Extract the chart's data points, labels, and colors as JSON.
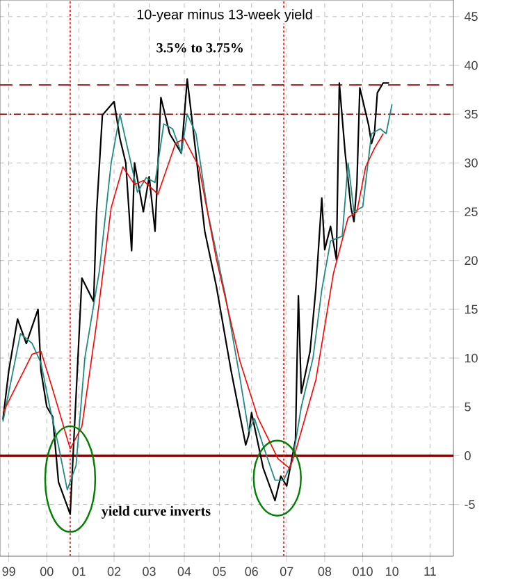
{
  "chart_data": {
    "type": "line",
    "title": "10-year minus 13-week yield",
    "annotations": [
      "3.5% to 3.75%",
      "yield curve inverts"
    ],
    "xlim": [
      "1999-01",
      "2011-12"
    ],
    "ylim": [
      -10.3,
      46.7
    ],
    "xticks": [
      {
        "value": "1999-04",
        "label": "99"
      },
      {
        "value": "2000-05",
        "label": "00"
      },
      {
        "value": "2001-04",
        "label": "01"
      },
      {
        "value": "2002-04",
        "label": "02"
      },
      {
        "value": "2003-04",
        "label": "03"
      },
      {
        "value": "2004-04",
        "label": "04"
      },
      {
        "value": "2005-04",
        "label": "05"
      },
      {
        "value": "2006-03",
        "label": "06"
      },
      {
        "value": "2007-03",
        "label": "07"
      },
      {
        "value": "2008-04",
        "label": "08"
      },
      {
        "value": "2009-05",
        "label": "010"
      },
      {
        "value": "2010-03",
        "label": "10"
      },
      {
        "value": "2011-04",
        "label": "11"
      }
    ],
    "yticks": [
      -5,
      0,
      5,
      10,
      15,
      20,
      25,
      30,
      35,
      40,
      45
    ],
    "grid": true,
    "series": [
      {
        "color": "#000000",
        "x": [
          "1999-02",
          "1999-04",
          "1999-07",
          "1999-10",
          "2000-02",
          "2000-03",
          "2000-05",
          "2000-07",
          "2000-09",
          "2001-01",
          "2001-02",
          "2001-05",
          "2001-09",
          "2001-10",
          "2001-12",
          "2002-04",
          "2002-06",
          "2002-08",
          "2002-10",
          "2002-11",
          "2003-02",
          "2003-04",
          "2003-06",
          "2003-08",
          "2003-11",
          "2004-03",
          "2004-05",
          "2004-07",
          "2004-11",
          "2005-03",
          "2005-08",
          "2006-01",
          "2006-02",
          "2006-03",
          "2006-07",
          "2006-11",
          "2007-01",
          "2007-03",
          "2007-06",
          "2007-07",
          "2007-08",
          "2007-11",
          "2008-01",
          "2008-03",
          "2008-04",
          "2008-06",
          "2008-08",
          "2008-09",
          "2008-11",
          "2009-01",
          "2009-02",
          "2009-03",
          "2009-04",
          "2009-07",
          "2009-08",
          "2009-09",
          "2009-10",
          "2009-12",
          "2010-02"
        ],
        "values": [
          3.7,
          8.7,
          14,
          11.5,
          15,
          8.7,
          5,
          4,
          -2.7,
          -6,
          0.1,
          18.2,
          15.8,
          24.9,
          34.9,
          36.3,
          32.5,
          30,
          21,
          30,
          25,
          28.6,
          23,
          36.7,
          33,
          31,
          38.6,
          33.5,
          23,
          17.3,
          8.7,
          1.1,
          2.1,
          4.4,
          -1.3,
          -4.6,
          -2.1,
          -3.1,
          1.6,
          16.4,
          6.4,
          10.7,
          17.2,
          26.4,
          21.1,
          23.5,
          20.1,
          38.2,
          31,
          25.4,
          24,
          27.8,
          37.7,
          33.9,
          32,
          33,
          37.2,
          38.2,
          38.2
        ]
      },
      {
        "color": "#1f8a80",
        "x": [
          "1999-02",
          "1999-05",
          "1999-08",
          "1999-12",
          "2000-03",
          "2000-06",
          "2000-09",
          "2000-12",
          "2001-03",
          "2001-06",
          "2001-11",
          "2002-03",
          "2002-06",
          "2002-09",
          "2002-12",
          "2003-03",
          "2003-06",
          "2003-09",
          "2003-12",
          "2004-03",
          "2004-05",
          "2004-08",
          "2004-12",
          "2005-06",
          "2005-11",
          "2006-02",
          "2006-04",
          "2006-07",
          "2006-11",
          "2007-02",
          "2007-05",
          "2007-08",
          "2007-12",
          "2008-03",
          "2008-06",
          "2008-10",
          "2008-12",
          "2009-02",
          "2009-05",
          "2009-08",
          "2009-11",
          "2010-01",
          "2010-03"
        ],
        "values": [
          3.5,
          8,
          12.5,
          11.5,
          9.5,
          5,
          1,
          -3.5,
          -1,
          10,
          19,
          30,
          35,
          31,
          27,
          28.5,
          28,
          34,
          33.5,
          31,
          35,
          33,
          25,
          16.5,
          8,
          2.5,
          3.8,
          1,
          -2.5,
          -2.5,
          -0.5,
          5,
          10,
          17,
          22,
          22.5,
          30,
          25,
          25.5,
          33,
          33.5,
          33,
          36
        ]
      },
      {
        "color": "#ff0000",
        "x": [
          "1999-02",
          "1999-12",
          "2000-03",
          "2000-07",
          "2001-01",
          "2001-05",
          "2001-10",
          "2002-03",
          "2002-07",
          "2002-11",
          "2003-02",
          "2003-07",
          "2004-01",
          "2004-04",
          "2004-09",
          "2005-03",
          "2005-11",
          "2006-04",
          "2006-05",
          "2006-12",
          "2007-04",
          "2007-06",
          "2008-01",
          "2008-07",
          "2008-12",
          "2009-03",
          "2009-06",
          "2009-09",
          "2009-12"
        ],
        "values": [
          4.4,
          10.4,
          10.7,
          6.8,
          0.7,
          3,
          13.5,
          25.4,
          29.6,
          27.8,
          28.2,
          26.8,
          32,
          32.5,
          29.6,
          20.1,
          9.7,
          5,
          4,
          -0.3,
          -1.3,
          0.4,
          7.8,
          18.7,
          24.4,
          25,
          29.6,
          31.5,
          33
        ]
      }
    ],
    "ref_lines": [
      {
        "axis": "y",
        "value": 38,
        "color": "#8b0000",
        "line_style": "dashed"
      },
      {
        "axis": "y",
        "value": 35,
        "color": "#8b0000",
        "line_style": "dashdot"
      },
      {
        "axis": "y",
        "value": 0,
        "color": "#8b0000",
        "line_style": "solid"
      },
      {
        "axis": "x",
        "value": "2001-01",
        "color": "#ff0000",
        "line_style": "dotted"
      },
      {
        "axis": "x",
        "value": "2007-02",
        "color": "#ff0000",
        "line_style": "dotted"
      }
    ]
  }
}
